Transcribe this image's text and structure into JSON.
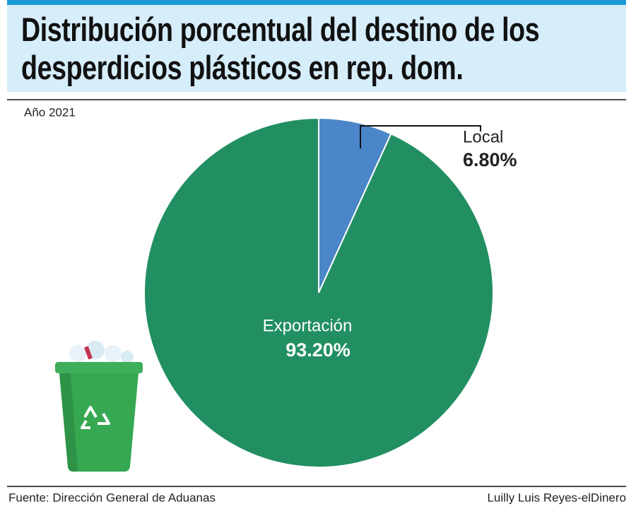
{
  "chart_data": {
    "type": "pie",
    "title": "Distribución porcentual del destino de los desperdicios plásticos en rep. dom.",
    "subtitle": "Año 2021",
    "categories": [
      "Local",
      "Exportación"
    ],
    "values": [
      6.8,
      93.2
    ],
    "value_labels": [
      "6.80%",
      "93.20%"
    ],
    "colors": [
      "#4a86c8",
      "#218f62"
    ],
    "source": "Fuente: Dirección General de Aduanas",
    "credit": "Luilly Luis Reyes-elDinero"
  }
}
